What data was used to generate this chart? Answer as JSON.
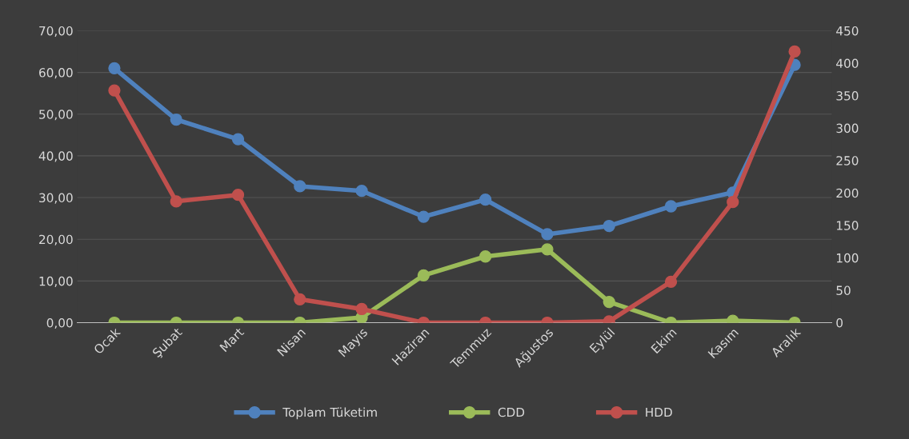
{
  "chart_data": {
    "type": "line",
    "categories": [
      "Ocak",
      "Şubat",
      "Mart",
      "Nisan",
      "Mayıs",
      "Haziran",
      "Temmuz",
      "Ağustos",
      "Eylül",
      "Ekim",
      "Kasım",
      "Aralık"
    ],
    "series": [
      {
        "name": "Toplam Tüketim",
        "color": "#4f81bd",
        "values": [
          61.0,
          48.7,
          44.0,
          32.7,
          31.6,
          25.4,
          29.5,
          21.2,
          23.2,
          27.9,
          31.2,
          61.8
        ]
      },
      {
        "name": "CDD",
        "color": "#9bbb59",
        "axis": "y2",
        "values": [
          0,
          0,
          0,
          0,
          8,
          73,
          102,
          113,
          32,
          0,
          3,
          0
        ]
      },
      {
        "name": "HDD",
        "color": "#c0504d",
        "axis": "y2",
        "values": [
          358,
          187,
          197,
          36,
          21,
          0,
          0,
          0,
          2,
          63,
          186,
          418
        ]
      }
    ],
    "ylim": [
      0,
      70
    ],
    "yticks": [
      {
        "value": 0,
        "label": "0,00"
      },
      {
        "value": 10,
        "label": "10,00"
      },
      {
        "value": 20,
        "label": "20,00"
      },
      {
        "value": 30,
        "label": "30,00"
      },
      {
        "value": 40,
        "label": "40,00"
      },
      {
        "value": 50,
        "label": "50,00"
      },
      {
        "value": 60,
        "label": "60,00"
      },
      {
        "value": 70,
        "label": "70,00"
      }
    ],
    "y2lim": [
      0,
      450
    ],
    "y2ticks": [
      0,
      50,
      100,
      150,
      200,
      250,
      300,
      350,
      400,
      450
    ],
    "grid": "y",
    "legend": "bottom",
    "marker": "circle",
    "line_style": "solid"
  }
}
